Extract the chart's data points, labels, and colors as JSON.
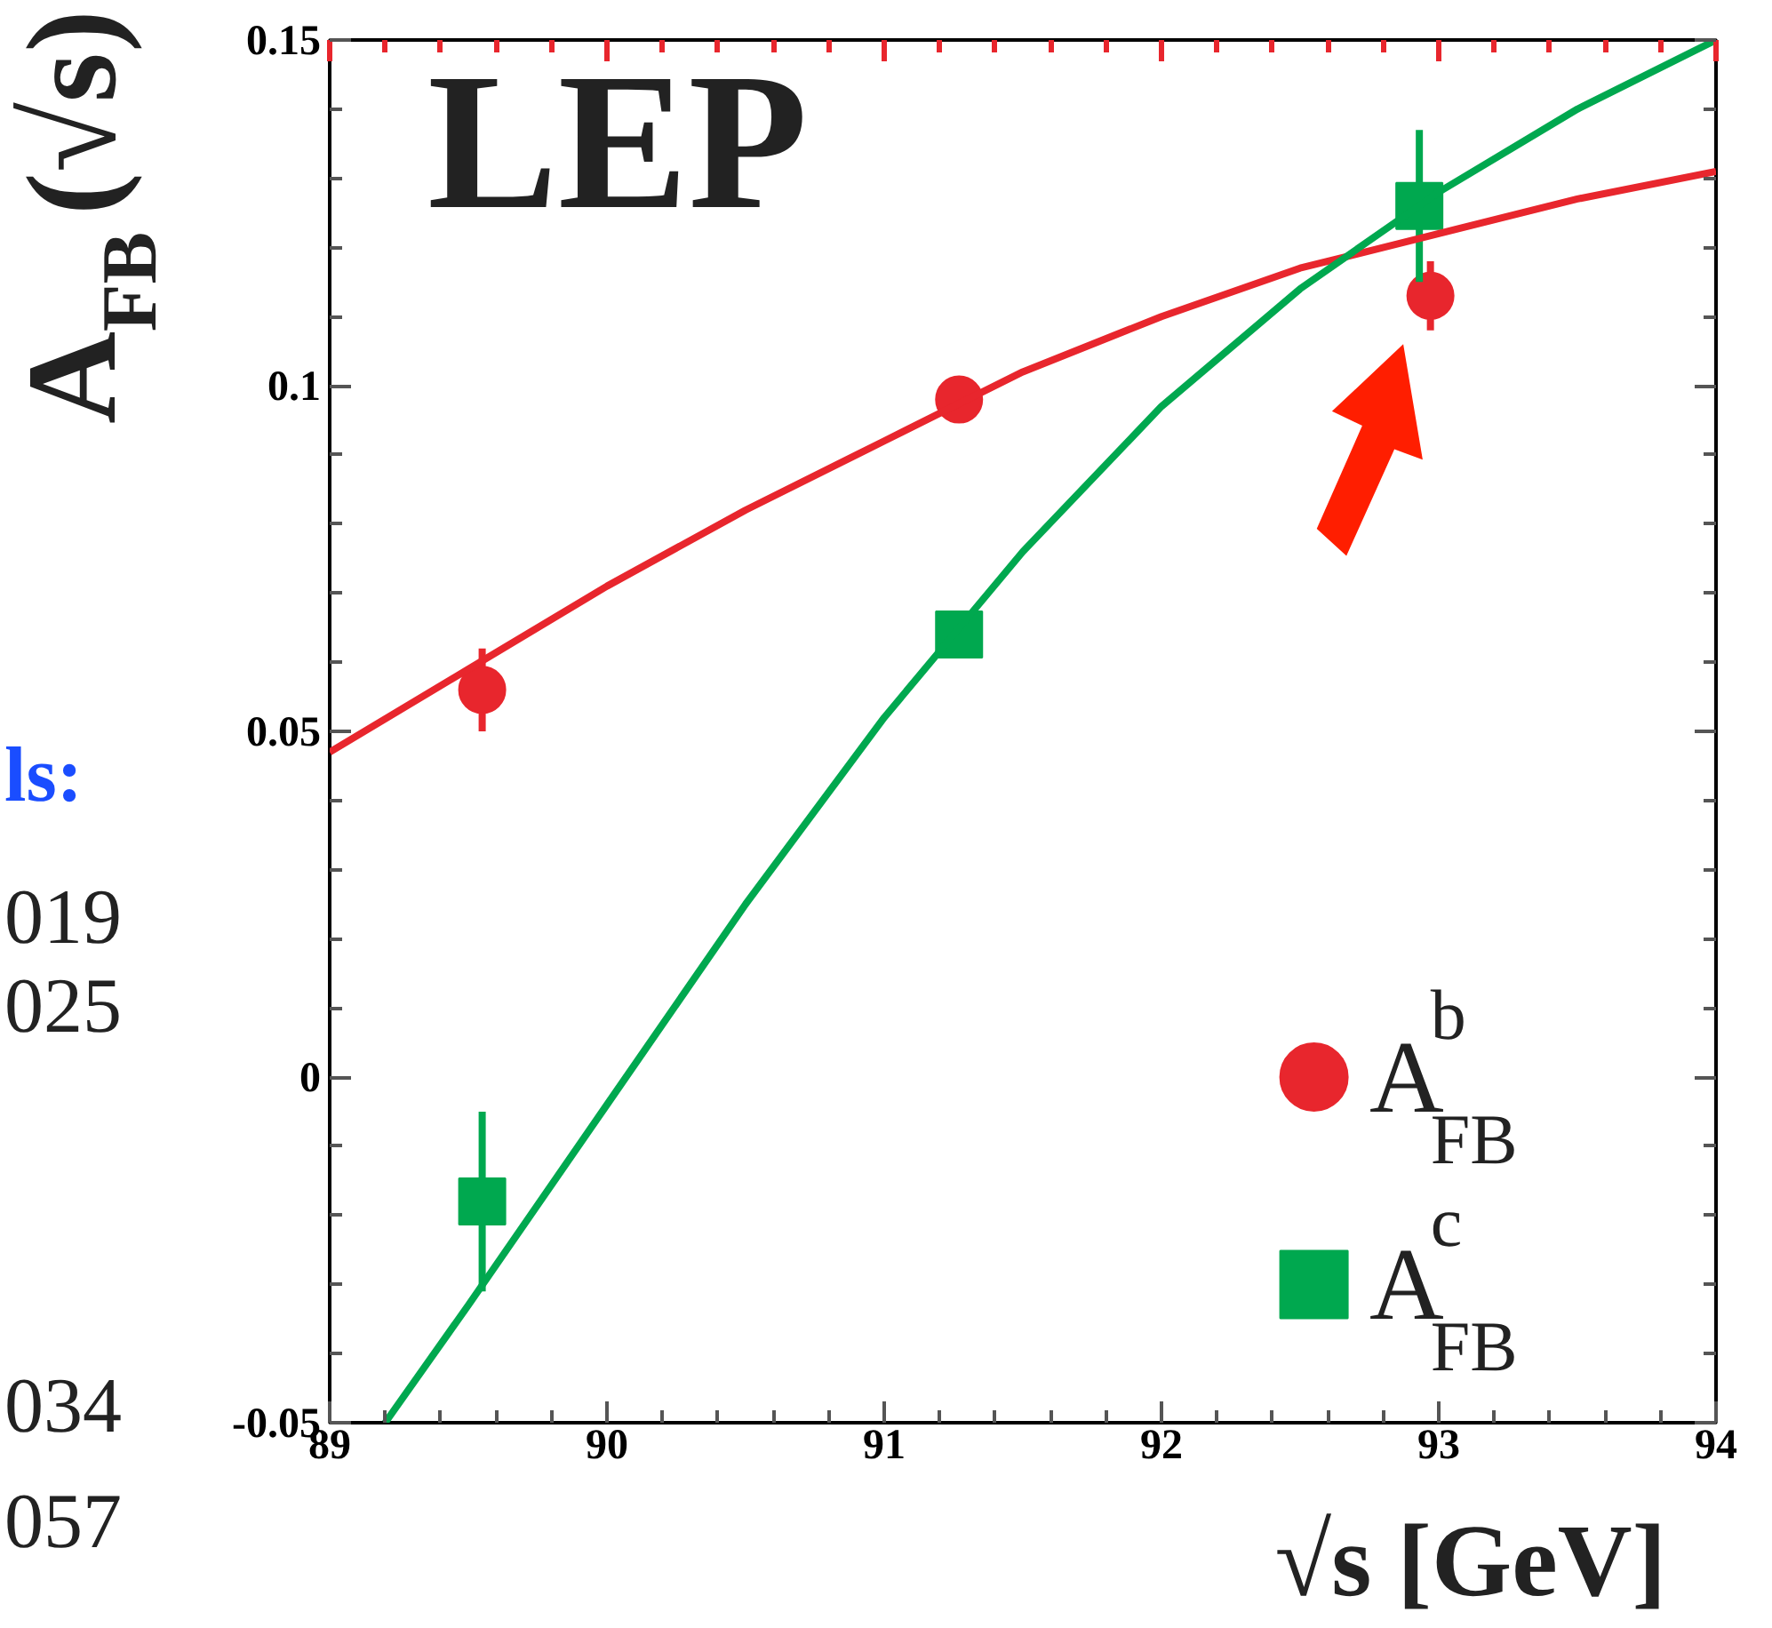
{
  "chart_data": {
    "type": "scatter",
    "title": "LEP",
    "xlabel": "√s [GeV]",
    "ylabel": "A$_{FB}$(√s)",
    "xlim": [
      89,
      94
    ],
    "xticks": [
      89,
      90,
      91,
      92,
      93,
      94
    ],
    "ylim": [
      -0.05,
      0.15
    ],
    "yticks": [
      {
        "value": -0.05,
        "label": "-0.05"
      },
      0,
      0.05,
      0.1,
      0.15
    ],
    "grid": false,
    "legend": "bottom right",
    "series": [
      {
        "name": "A$^{b}$$_{FB}$",
        "type": "scatter",
        "marker": "circle",
        "color": "#e8262d",
        "x": [
          89.55,
          91.27,
          92.97
        ],
        "values": [
          0.056,
          0.098,
          0.113
        ],
        "errors": [
          0.006,
          0.002,
          0.005
        ]
      },
      {
        "name": "A$^{c}$$_{FB}$",
        "type": "scatter",
        "marker": "square",
        "color": "#00a84f",
        "x": [
          89.55,
          91.27,
          92.93
        ],
        "values": [
          -0.018,
          0.064,
          0.126
        ],
        "errors": [
          0.013,
          0.002,
          0.011
        ]
      },
      {
        "type": "line",
        "color": "#e8262d",
        "x": [
          89,
          89.5,
          90,
          90.5,
          91,
          91.5,
          92,
          92.5,
          93,
          93.5,
          94
        ],
        "values": [
          0.047,
          0.059,
          0.071,
          0.082,
          0.092,
          0.102,
          0.11,
          0.117,
          0.122,
          0.127,
          0.131
        ]
      },
      {
        "type": "line",
        "color": "#00a84f",
        "x": [
          89.2,
          89.5,
          90,
          90.5,
          91,
          91.5,
          92,
          92.5,
          93,
          93.5,
          94
        ],
        "values": [
          -0.05,
          -0.033,
          -0.004,
          0.025,
          0.052,
          0.076,
          0.097,
          0.114,
          0.128,
          0.14,
          0.15
        ]
      }
    ],
    "annotations": [
      "ls:",
      "019",
      "025",
      "034",
      "057"
    ]
  }
}
